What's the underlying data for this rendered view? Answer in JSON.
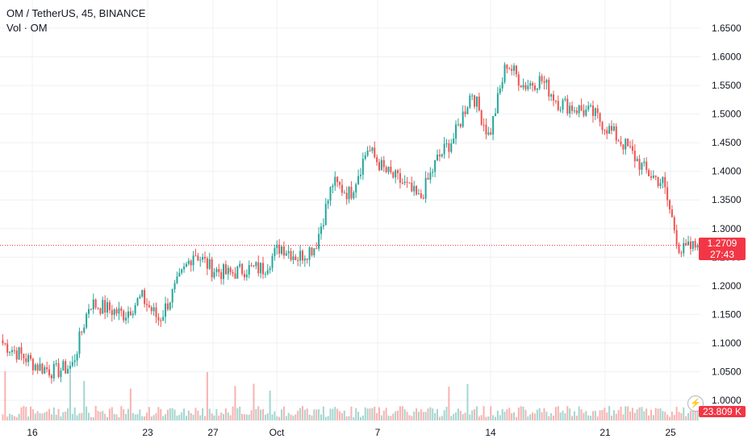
{
  "legend": {
    "symbol_line": "OM / TetherUS, 45, BINANCE",
    "volume_line": "Vol · OM"
  },
  "price_badge": {
    "price": "1.2709",
    "countdown": "27:43"
  },
  "volume_badge": {
    "value": "23.809 K"
  },
  "colors": {
    "up": "#26a69a",
    "down": "#ef5350",
    "up_vol": "#a5d6d0",
    "down_vol": "#f7b3b1",
    "badge": "#f23645",
    "grid": "#eef0f3",
    "price_line": "#f23645"
  },
  "icons": {
    "replay": "lightning-icon"
  },
  "chart_data": {
    "type": "candlestick",
    "y_axis": {
      "ticks": [
        "1.6500",
        "1.6000",
        "1.5500",
        "1.5000",
        "1.4500",
        "1.4000",
        "1.3500",
        "1.3000",
        "1.2500",
        "1.2000",
        "1.1500",
        "1.1000",
        "1.0500",
        "1.0000"
      ],
      "range": [
        0.99,
        1.675
      ]
    },
    "x_axis": {
      "ticks": [
        "16",
        "23",
        "27",
        "Oct",
        "7",
        "14",
        "21",
        "25"
      ]
    },
    "last_price": 1.2709,
    "price_path": [
      [
        "16",
        1.1
      ],
      [
        "17",
        1.08
      ],
      [
        "18",
        1.06
      ],
      [
        "19",
        1.05
      ],
      [
        "20",
        1.06
      ],
      [
        "21",
        1.17
      ],
      [
        "22",
        1.16
      ],
      [
        "23",
        1.15
      ],
      [
        "24",
        1.18
      ],
      [
        "25",
        1.14
      ],
      [
        "26",
        1.2
      ],
      [
        "27",
        1.26
      ],
      [
        "28",
        1.23
      ],
      [
        "29",
        1.22
      ],
      [
        "30",
        1.23
      ],
      [
        "Oct",
        1.23
      ],
      [
        "2",
        1.27
      ],
      [
        "3",
        1.25
      ],
      [
        "4",
        1.27
      ],
      [
        "5",
        1.38
      ],
      [
        "6",
        1.36
      ],
      [
        "7",
        1.44
      ],
      [
        "8",
        1.4
      ],
      [
        "9",
        1.38
      ],
      [
        "10",
        1.35
      ],
      [
        "11",
        1.42
      ],
      [
        "12",
        1.46
      ],
      [
        "13",
        1.54
      ],
      [
        "14",
        1.46
      ],
      [
        "15",
        1.59
      ],
      [
        "16",
        1.55
      ],
      [
        "17",
        1.56
      ],
      [
        "18",
        1.52
      ],
      [
        "19",
        1.51
      ],
      [
        "20",
        1.5
      ],
      [
        "21",
        1.47
      ],
      [
        "22",
        1.44
      ],
      [
        "23",
        1.4
      ],
      [
        "24",
        1.38
      ],
      [
        "25",
        1.26
      ],
      [
        "26",
        1.27
      ]
    ]
  }
}
